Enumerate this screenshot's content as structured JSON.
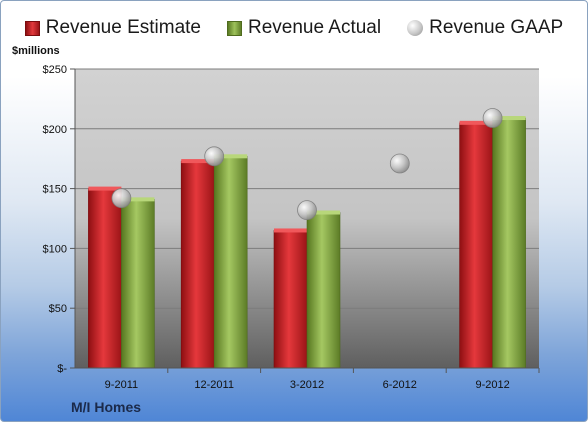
{
  "chart_data": {
    "type": "bar",
    "categories": [
      "9-2011",
      "12-2011",
      "3-2012",
      "6-2012",
      "9-2012"
    ],
    "series": [
      {
        "name": "Revenue Estimate",
        "values": [
          150,
          173,
          115,
          null,
          205
        ],
        "color": "#c8202a"
      },
      {
        "name": "Revenue Actual",
        "values": [
          141,
          177,
          130,
          null,
          209
        ],
        "color": "#8cb04a"
      },
      {
        "name": "Revenue GAAP",
        "values": [
          142,
          177,
          132,
          171,
          209
        ],
        "color": "#b8b8b8",
        "marker": "circle"
      }
    ],
    "ylabel": "$millions",
    "ylim": [
      0,
      250
    ],
    "yticks": [
      0,
      50,
      100,
      150,
      200,
      250
    ],
    "ytick_labels": [
      "$-",
      "$50",
      "$100",
      "$150",
      "$200",
      "$250"
    ],
    "legend_position": "top",
    "grid": true
  },
  "footer": {
    "company": "M/I Homes"
  }
}
